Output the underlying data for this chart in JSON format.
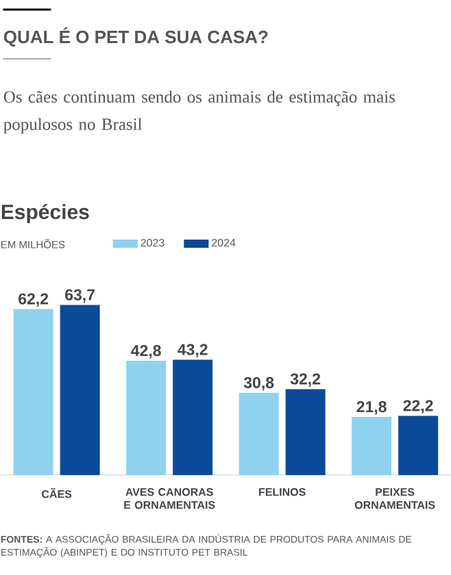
{
  "chart_data": {
    "type": "bar",
    "title": "QUAL É O PET DA SUA CASA?",
    "subtitle": "Os cães continuam sendo os animais de estimação mais populosos no Brasil",
    "annotations": [
      "Espécies",
      "EM MILHÕES",
      "**FONTES:** A ASSOCIAÇÃO BRASILEIRA DA INDÚSTRIA DE PRODUTOS PARA ANIMAIS DE ESTIMAÇÃO (ABINPET) E DO INSTITUTO PET BRASIL"
    ],
    "categories": [
      "CÃES",
      "AVES CANORAS E ORNAMENTAIS",
      "FELINOS",
      "PEIXES ORNAMENTAIS"
    ],
    "series": [
      {
        "name": "2023",
        "color": "#8fd1ef",
        "values": [
          62.2,
          42.8,
          30.8,
          21.8
        ],
        "value_labels": [
          "62,2",
          "42,8",
          "30,8",
          "21,8"
        ]
      },
      {
        "name": "2024",
        "color": "#0b4a98",
        "values": [
          63.7,
          43.2,
          32.2,
          22.2
        ],
        "value_labels": [
          "63,7",
          "43,2",
          "32,2",
          "22,2"
        ]
      }
    ],
    "legend": "top left",
    "tick_labels": "x"
  }
}
